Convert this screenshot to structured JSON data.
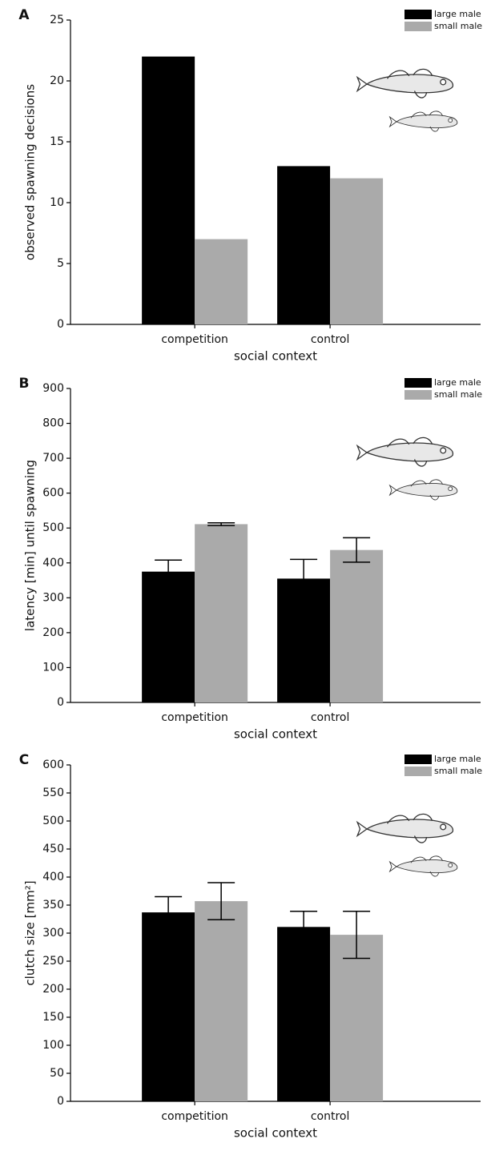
{
  "chart_data": [
    {
      "type": "bar",
      "panel_label": "A",
      "ylabel": "observed spawning decisions",
      "xlabel": "social context",
      "categories": [
        "competition",
        "control"
      ],
      "series": [
        {
          "name": "large male",
          "color": "#000000",
          "values": [
            22,
            13
          ]
        },
        {
          "name": "small male",
          "color": "#aaaaaa",
          "values": [
            7,
            12
          ]
        }
      ],
      "ylim": [
        0,
        25
      ],
      "yticks": [
        0,
        5,
        10,
        15,
        20,
        25
      ],
      "legend": "upper right"
    },
    {
      "type": "bar",
      "panel_label": "B",
      "ylabel": "latency [min] until spawning",
      "xlabel": "social context",
      "categories": [
        "competition",
        "control"
      ],
      "series": [
        {
          "name": "large male",
          "color": "#000000",
          "values": [
            375,
            355
          ],
          "errors": [
            33,
            55
          ]
        },
        {
          "name": "small male",
          "color": "#aaaaaa",
          "values": [
            511,
            437
          ],
          "errors": [
            4,
            35
          ]
        }
      ],
      "ylim": [
        0,
        900
      ],
      "yticks": [
        0,
        100,
        200,
        300,
        400,
        500,
        600,
        700,
        800,
        900
      ],
      "legend": "upper right"
    },
    {
      "type": "bar",
      "panel_label": "C",
      "ylabel": "clutch size [mm²]",
      "xlabel": "social context",
      "categories": [
        "competition",
        "control"
      ],
      "series": [
        {
          "name": "large male",
          "color": "#000000",
          "values": [
            337,
            311
          ],
          "errors": [
            28,
            28
          ]
        },
        {
          "name": "small male",
          "color": "#aaaaaa",
          "values": [
            357,
            297
          ],
          "errors": [
            33,
            42
          ]
        }
      ],
      "ylim": [
        0,
        600
      ],
      "yticks": [
        0,
        50,
        100,
        150,
        200,
        250,
        300,
        350,
        400,
        450,
        500,
        550,
        600
      ],
      "legend": "upper right"
    }
  ]
}
